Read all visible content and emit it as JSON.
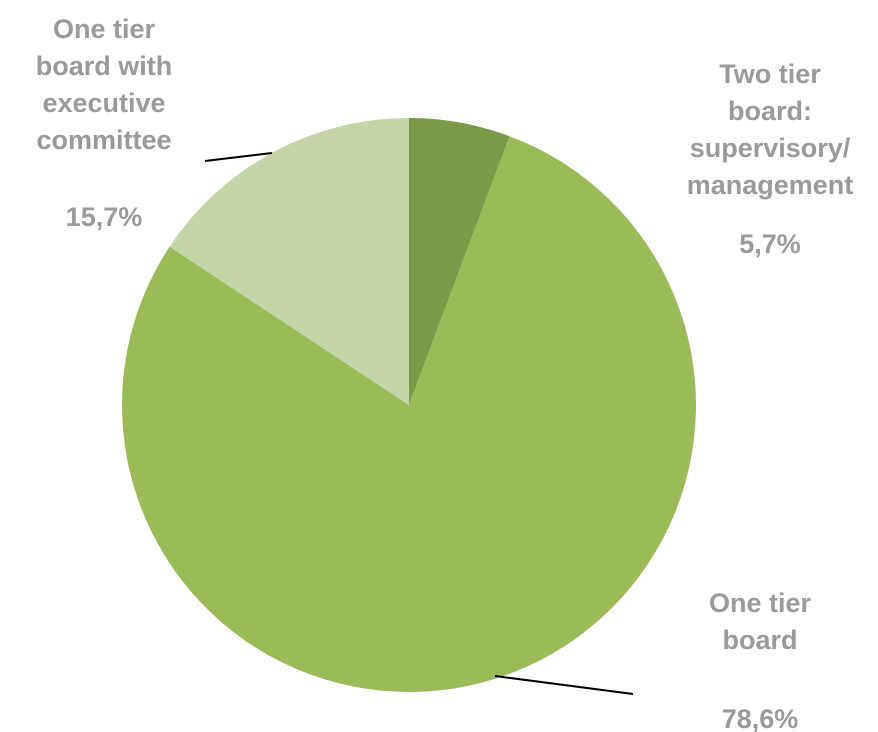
{
  "chart_data": {
    "type": "pie",
    "start_angle_deg": 0,
    "direction": "clockwise",
    "slices": [
      {
        "label_lines": [
          "Two tier",
          "board:",
          "supervisory/",
          "management"
        ],
        "value": 5.7,
        "value_label": "5,7%",
        "color": "#7a9a4a"
      },
      {
        "label_lines": [
          "One tier",
          "board"
        ],
        "value": 78.6,
        "value_label": "78,6%",
        "color": "#9bbb59"
      },
      {
        "label_lines": [
          "One tier",
          "board with",
          "executive",
          "committee"
        ],
        "value": 15.7,
        "value_label": "15,7%",
        "color": "#c4d6a8"
      }
    ],
    "legend": "none"
  }
}
